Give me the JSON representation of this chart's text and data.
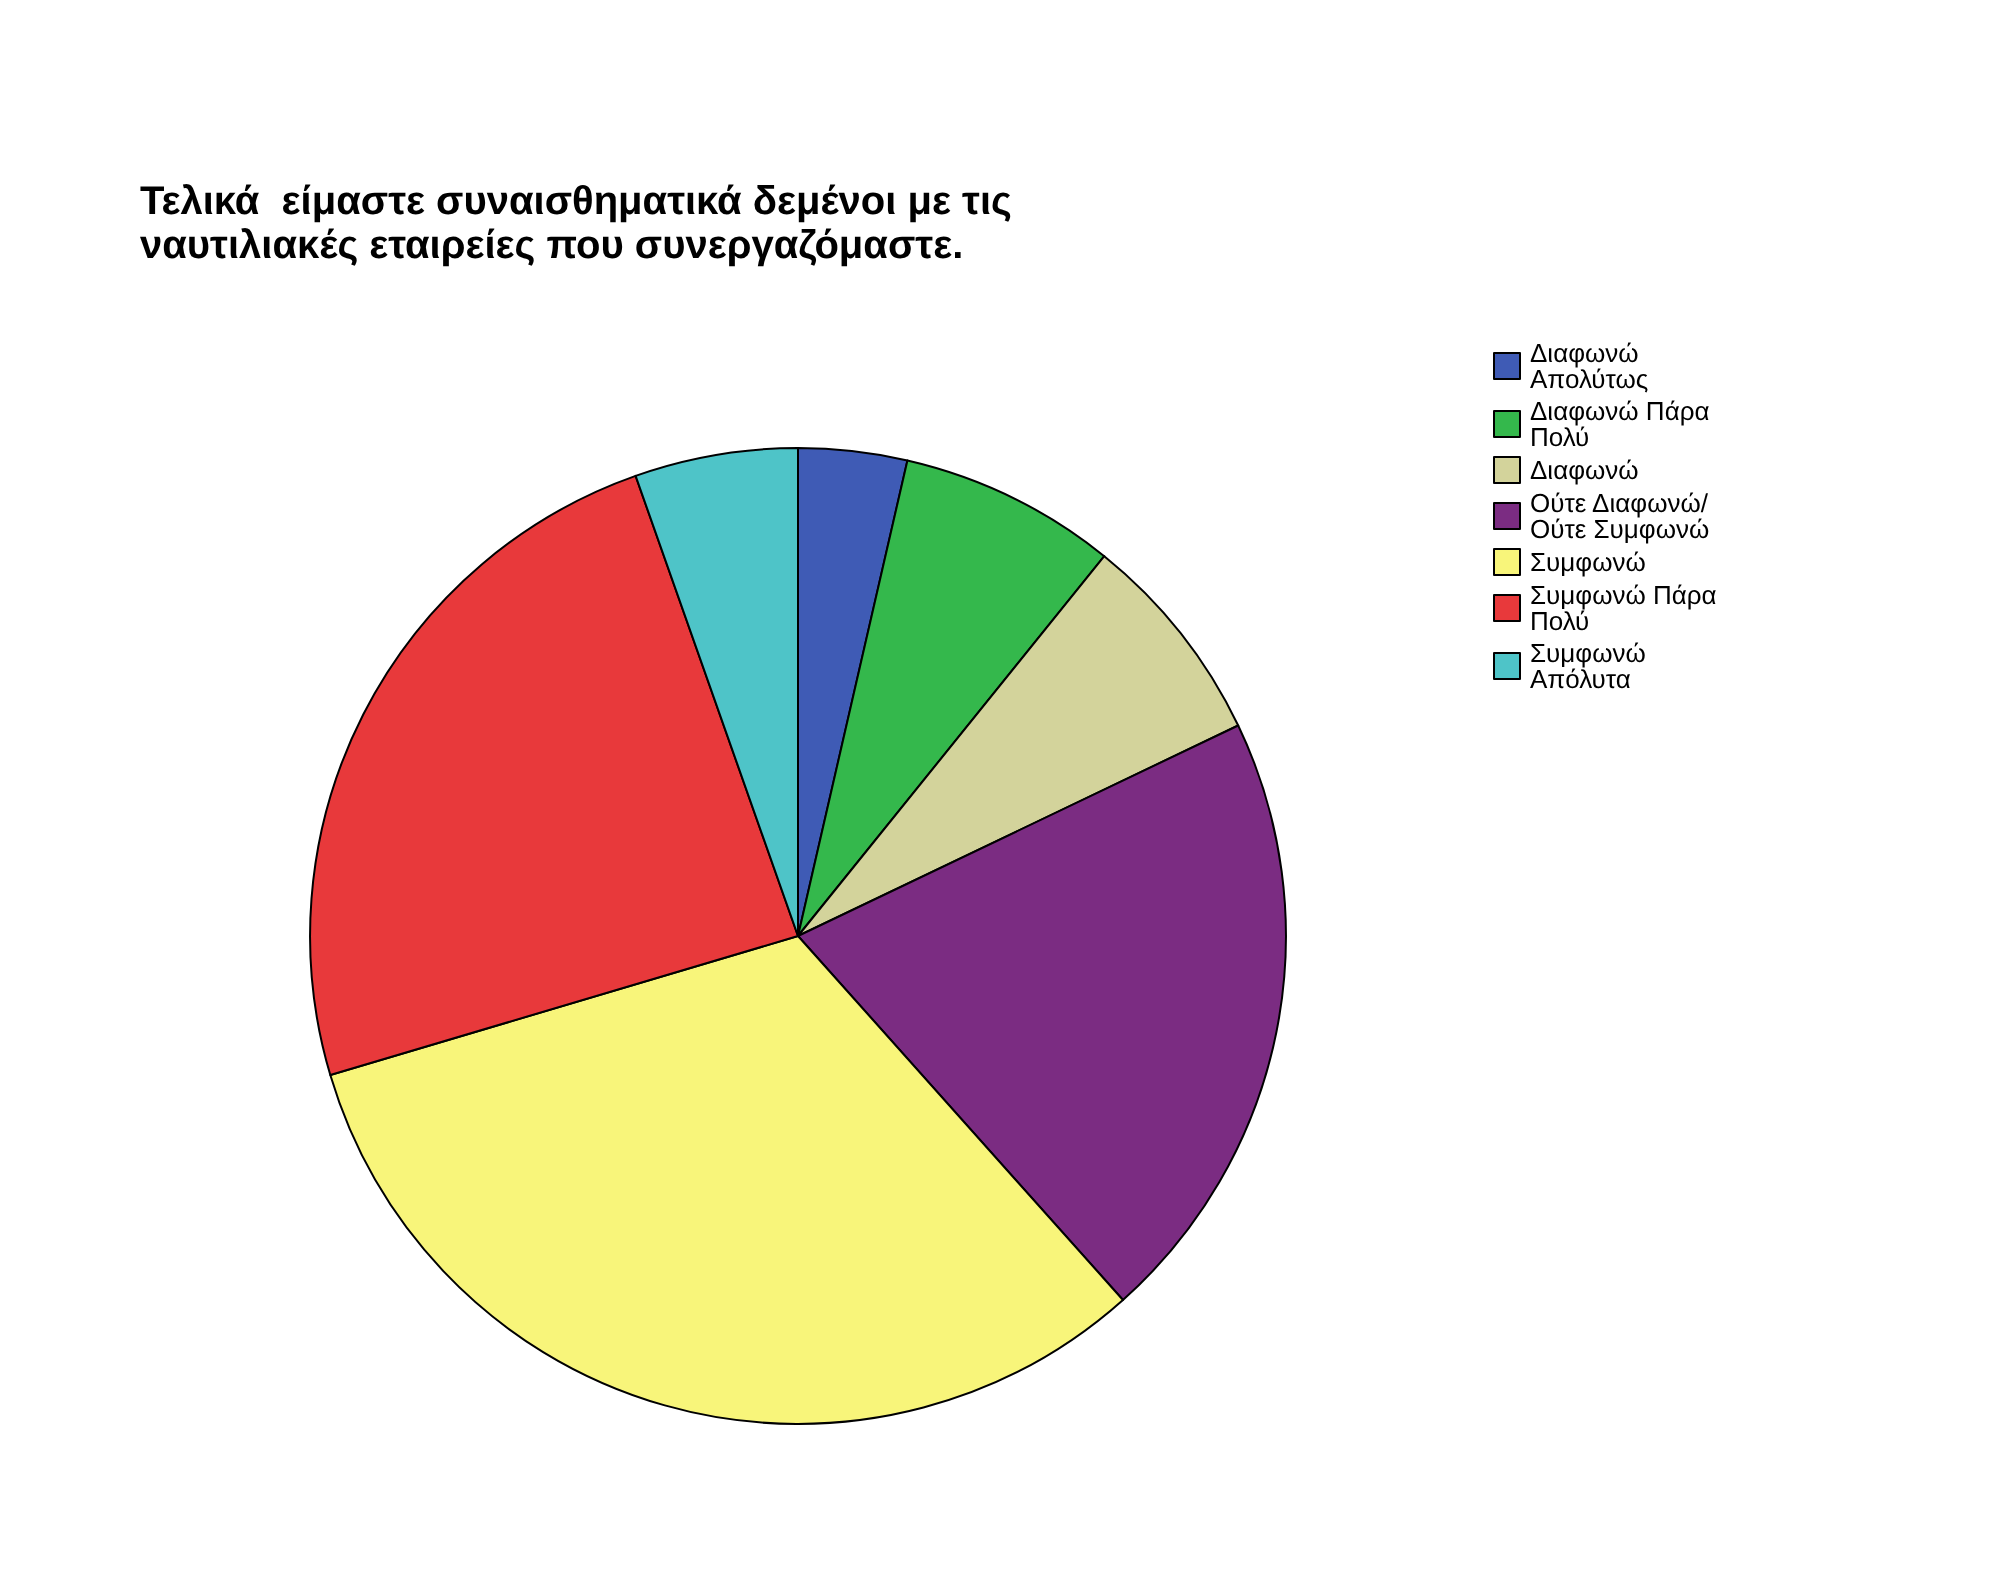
{
  "chart_data": {
    "type": "pie",
    "title": "Τελικά  είμαστε συναισθηματικά δεμένοι με τις ναυτιλιακές εταιρείες που συνεργαζόμαστε.",
    "categories": [
      "Διαφωνώ Απολύτως",
      "Διαφωνώ Πάρα Πολύ",
      "Διαφωνώ",
      "Ούτε Διαφωνώ/ Ούτε Συμφωνώ",
      "Συμφωνώ",
      "Συμφωνώ Πάρα Πολύ",
      "Συμφωνώ Απόλυτα"
    ],
    "values": [
      3.6,
      7.2,
      7.1,
      20.5,
      32.0,
      24.2,
      5.4
    ],
    "colors": [
      "#3f5bb5",
      "#34b84c",
      "#d3d39b",
      "#7b2c82",
      "#f8f57a",
      "#e8393b",
      "#4ec4c8"
    ],
    "legend": "top right"
  }
}
